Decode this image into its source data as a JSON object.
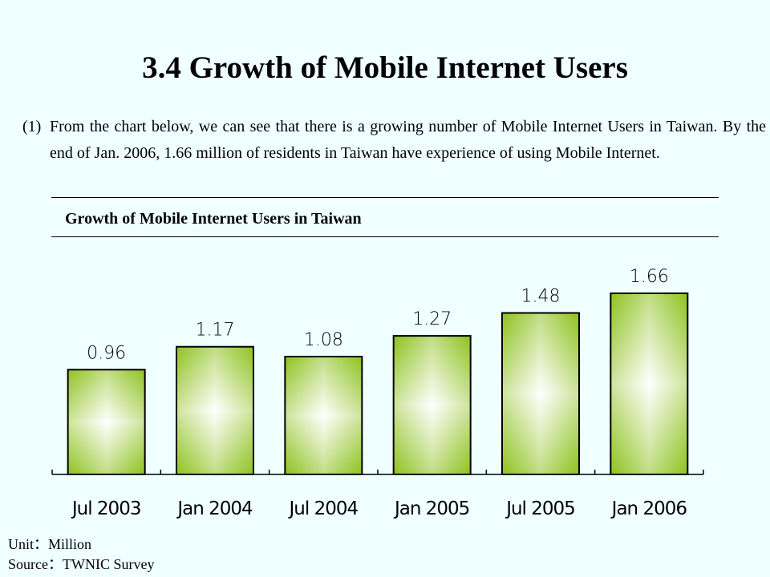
{
  "page": {
    "title": "3.4 Growth of Mobile Internet Users",
    "paragraph_num": "(1)",
    "paragraph": "From the chart below, we can see that there is a growing number of Mobile Internet Users in Taiwan. By the end of Jan. 2006, 1.66 million of residents in Taiwan have experience of using Mobile Internet.",
    "unit": "Unit：Million",
    "source": "Source：TWNIC Survey"
  },
  "chart_data": {
    "type": "bar",
    "title": "Growth of Mobile Internet Users in Taiwan",
    "categories": [
      "Jul 2003",
      "Jan 2004",
      "Jul 2004",
      "Jan 2005",
      "Jul 2005",
      "Jan 2006"
    ],
    "values": [
      0.96,
      1.17,
      1.08,
      1.27,
      1.48,
      1.66
    ],
    "value_labels": [
      "0.96",
      "1.17",
      "1.08",
      "1.27",
      "1.48",
      "1.66"
    ],
    "xlabel": "",
    "ylabel": "",
    "ylim": [
      0,
      1.66
    ],
    "grid": false,
    "colors": {
      "bar_edge": "#8ec21f",
      "bar_center": "#ffffff"
    }
  }
}
